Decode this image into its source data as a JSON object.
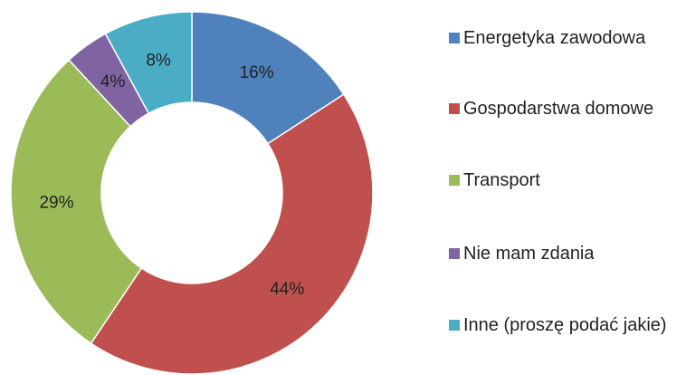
{
  "chart_data": {
    "type": "donut",
    "categories": [
      "Energetyka zawodowa",
      "Gospodarstwa domowe",
      "Transport",
      "Nie mam zdania",
      "Inne (proszę podać jakie)"
    ],
    "values": [
      16,
      44,
      29,
      4,
      8
    ],
    "value_labels": [
      "16%",
      "44%",
      "29%",
      "4%",
      "8%"
    ],
    "colors": [
      "#4f81bd",
      "#c0504d",
      "#9bbb59",
      "#8064a2",
      "#4bacc6"
    ],
    "legend": "right"
  }
}
